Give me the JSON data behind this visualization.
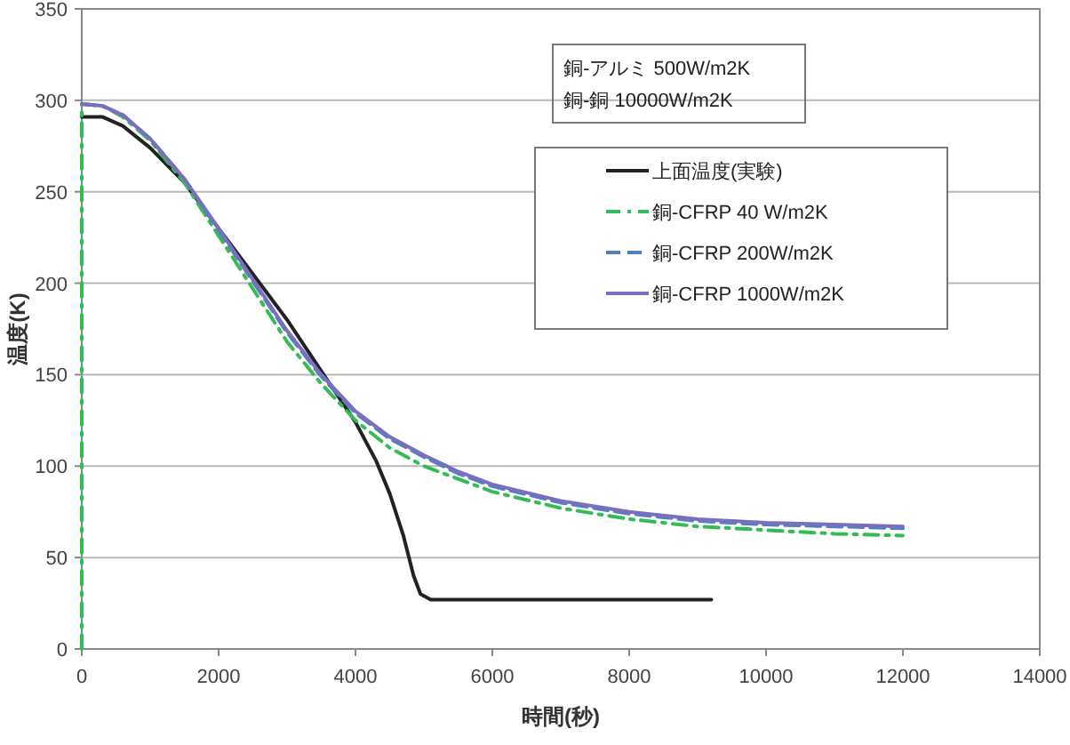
{
  "chart_data": {
    "type": "line",
    "xlabel": "時間(秒)",
    "ylabel": "温度(K)",
    "xlim": [
      0,
      14000
    ],
    "xticks": [
      0,
      2000,
      4000,
      6000,
      8000,
      10000,
      12000,
      14000
    ],
    "ylim": [
      0,
      350
    ],
    "yticks": [
      0,
      50,
      100,
      150,
      200,
      250,
      300,
      350
    ],
    "grid": "y",
    "legend": "top right",
    "annotations": [
      "銅-アルミ 500W/m2K",
      "銅-銅 10000W/m2K"
    ],
    "series": [
      {
        "name": "上面温度(実験)",
        "color": "#222222",
        "line_style": "solid",
        "x": [
          0,
          300,
          600,
          1000,
          1500,
          2000,
          2500,
          3000,
          3500,
          4000,
          4300,
          4500,
          4700,
          4850,
          4950,
          5100,
          6000,
          9200
        ],
        "values": [
          291,
          291,
          286,
          274,
          255,
          230,
          205,
          180,
          152,
          124,
          103,
          85,
          62,
          40,
          30,
          27,
          27,
          27
        ]
      },
      {
        "name": "銅-CFRP 40 W/m2K",
        "color": "#33bb55",
        "line_style": "dashdot",
        "x": [
          0,
          0,
          300,
          600,
          1000,
          1500,
          2000,
          2500,
          3000,
          3500,
          4000,
          4500,
          5000,
          6000,
          7000,
          8000,
          9000,
          10000,
          11000,
          12000
        ],
        "values": [
          0,
          298,
          297,
          291,
          278,
          255,
          226,
          197,
          168,
          145,
          125,
          110,
          100,
          86,
          77,
          71,
          67,
          65,
          63,
          62
        ]
      },
      {
        "name": "銅-CFRP 200W/m2K",
        "color": "#4f81bd",
        "line_style": "dashed",
        "x": [
          0,
          300,
          600,
          1000,
          1500,
          2000,
          2500,
          3000,
          3500,
          4000,
          4500,
          5000,
          5500,
          6000,
          7000,
          8000,
          9000,
          10000,
          11000,
          12000
        ],
        "values": [
          298,
          297,
          292,
          279,
          257,
          229,
          201,
          173,
          149,
          129,
          115,
          105,
          96,
          89,
          80,
          74,
          70,
          68,
          67,
          66
        ]
      },
      {
        "name": "銅-CFRP 1000W/m2K",
        "color": "#7a6fbf",
        "line_style": "solid",
        "x": [
          0,
          300,
          600,
          1000,
          1500,
          2000,
          2500,
          3000,
          3500,
          4000,
          4500,
          5000,
          5500,
          6000,
          7000,
          8000,
          9000,
          10000,
          11000,
          12000
        ],
        "values": [
          298,
          297,
          292,
          279,
          257,
          230,
          202,
          174,
          150,
          130,
          116,
          106,
          97,
          90,
          81,
          75,
          71,
          69,
          68,
          67
        ]
      }
    ]
  }
}
